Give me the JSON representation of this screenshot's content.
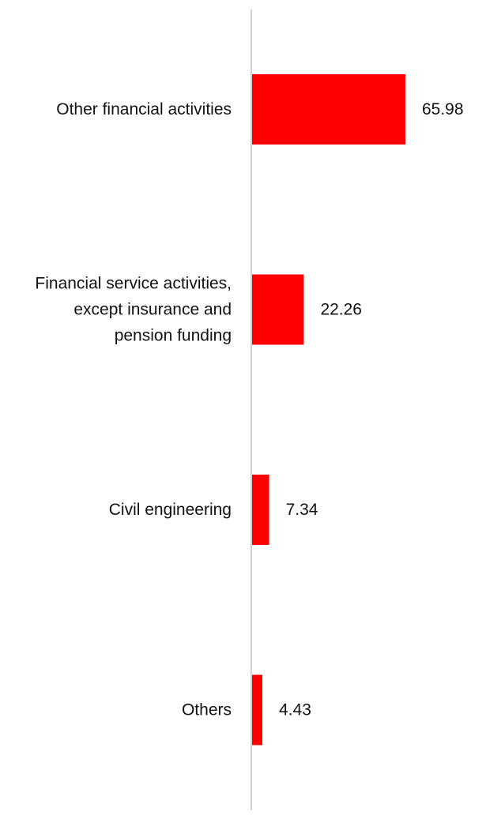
{
  "chart_data": {
    "type": "bar",
    "orientation": "horizontal",
    "categories": [
      [
        "Other financial activities"
      ],
      [
        "Financial service activities,",
        "except insurance and",
        "pension funding"
      ],
      [
        "Civil engineering"
      ],
      [
        "Others"
      ]
    ],
    "values": [
      65.98,
      22.26,
      7.34,
      4.43
    ],
    "value_labels": [
      "65.98",
      "22.26",
      "7.34",
      "4.43"
    ],
    "title": "",
    "xlabel": "",
    "ylabel": "",
    "xlim": [
      0,
      100
    ],
    "grid": false,
    "legend": "none",
    "bar_color": "#ff0000",
    "axis_color": "#d0d0d0"
  }
}
